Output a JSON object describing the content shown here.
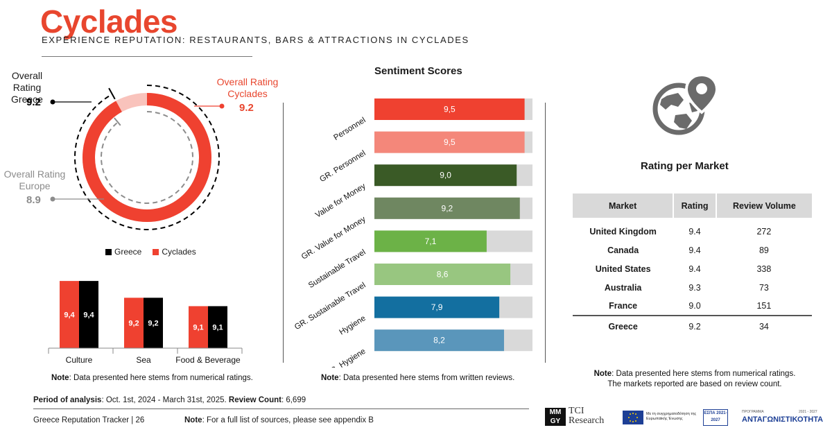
{
  "header": {
    "title": "Cyclades",
    "subtitle": "EXPERIENCE REPUTATION: RESTAURANTS, BARS & ATTRACTIONS IN CYCLADES"
  },
  "overall": {
    "greece": {
      "label": "Overall Rating\nGreece",
      "value": "9.2"
    },
    "cyclades": {
      "label": "Overall Rating\nCyclades",
      "value": "9.2"
    },
    "europe": {
      "label": "Overall Rating\nEurope",
      "value": "8.9"
    },
    "max": 10
  },
  "colors": {
    "accent": "#e8462e",
    "greece": "#000000",
    "cyclades": "#ef4130",
    "europe_text": "#8c8c8c",
    "track": "#d9d9d9"
  },
  "category_chart": {
    "legend": [
      "Greece",
      "Cyclades"
    ],
    "note_bold": "Note",
    "note_text": ": Data presented here stems from numerical ratings."
  },
  "sentiment": {
    "title": "Sentiment Scores",
    "note_bold": "Note",
    "note_text": ": Data presented here stems from written reviews."
  },
  "chart_data": [
    {
      "type": "donut",
      "values": [
        {
          "name": "Overall Rating Cyclades",
          "value": 9.2
        },
        {
          "name": "Overall Rating Greece",
          "value": 9.2
        },
        {
          "name": "Overall Rating Europe",
          "value": 8.9
        }
      ],
      "max": 10
    },
    {
      "type": "bar",
      "categories": [
        "Culture",
        "Sea",
        "Food & Beverage"
      ],
      "series": [
        {
          "name": "Cyclades",
          "values": [
            9.4,
            9.2,
            9.1
          ],
          "labels": [
            "9,4",
            "9,2",
            "9,1"
          ],
          "color": "#ef4130"
        },
        {
          "name": "Greece",
          "values": [
            9.4,
            9.2,
            9.1
          ],
          "labels": [
            "9,4",
            "9,2",
            "9,1"
          ],
          "color": "#000000"
        }
      ],
      "ylim": [
        8.6,
        9.5
      ]
    },
    {
      "type": "bar",
      "orientation": "horizontal",
      "title": "Sentiment Scores",
      "max": 10,
      "bars": [
        {
          "label": "Personnel",
          "value": 9.5,
          "display": "9,5",
          "color": "#ef4130"
        },
        {
          "label": "GR. Personnel",
          "value": 9.5,
          "display": "9,5",
          "color": "#f4877a"
        },
        {
          "label": "Value for Money",
          "value": 9.0,
          "display": "9,0",
          "color": "#3a5a26"
        },
        {
          "label": "GR. Value for Money",
          "value": 9.2,
          "display": "9,2",
          "color": "#6f8761"
        },
        {
          "label": "Sustainable Travel",
          "value": 7.1,
          "display": "7,1",
          "color": "#6cb247"
        },
        {
          "label": "GR. Sustainable Travel",
          "value": 8.6,
          "display": "8,6",
          "color": "#98c680"
        },
        {
          "label": "Hygiene",
          "value": 7.9,
          "display": "7,9",
          "color": "#136fa0"
        },
        {
          "label": "GR. Hygiene",
          "value": 8.2,
          "display": "8,2",
          "color": "#5a96bb"
        }
      ]
    },
    {
      "type": "table",
      "title": "Rating per Market",
      "columns": [
        "Market",
        "Rating",
        "Review Volume"
      ],
      "rows": [
        [
          "United Kingdom",
          "9.4",
          "272"
        ],
        [
          "Canada",
          "9.4",
          "89"
        ],
        [
          "United States",
          "9.4",
          "338"
        ],
        [
          "Australia",
          "9.3",
          "73"
        ],
        [
          "France",
          "9.0",
          "151"
        ]
      ],
      "total_row": [
        "Greece",
        "9.2",
        "34"
      ]
    }
  ],
  "market": {
    "title": "Rating per Market",
    "icon": "globe-pin-icon",
    "note_bold": "Note",
    "note_line1": ": Data presented here stems from numerical ratings.",
    "note_line2": "The markets reported are based on review count."
  },
  "footer": {
    "period_label": "Period of analysis",
    "period_value": ": Oct. 1st, 2024 - March 31st, 2025.",
    "count_label": "Review Count",
    "count_value": ": 6,699",
    "tracker": "Greece Reputation Tracker |  26",
    "source_bold": "Note",
    "source_text": ": For a full list of sources, please see appendix B"
  },
  "logos": {
    "mmgy_top": "MM",
    "mmgy_bottom": "GY",
    "tci_line1": "TCI",
    "tci_line2": "Research",
    "eu_text": "Με τη συγχρηματοδότηση της Ευρωπαϊκής Ένωσης",
    "espa": "ΕΣΠΑ 2021-2027",
    "antag_small": "ΠΡΟΓΡΑΜΜΑ",
    "antag": "ΑΝΤΑΓΩΝΙΣΤΙΚΟΤΗΤΑ",
    "antag_year": "2021 - 2027"
  }
}
